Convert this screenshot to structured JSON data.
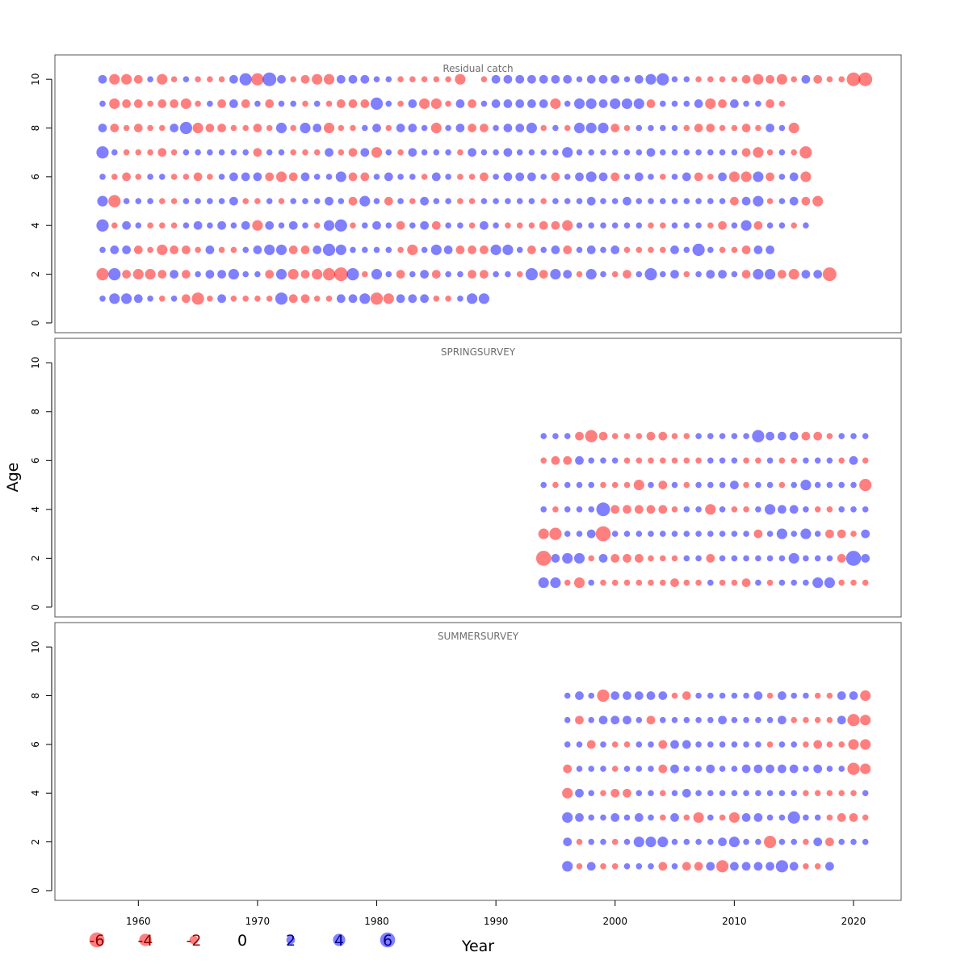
{
  "figure": {
    "xlabel": "Year",
    "ylabel": "Age"
  },
  "colors": {
    "negative": "#ff0000",
    "positive": "#0000ff",
    "bubble_opacity": 0.5,
    "frame": "#555555",
    "panel_title": "#6e6e6e"
  },
  "chart_data": {
    "type": "scatter",
    "description_of_encoding": "bubble residual plot",
    "xlim": [
      1953,
      2024
    ],
    "ylim": [
      -0.4,
      11
    ],
    "x_ticks": [
      1960,
      1970,
      1980,
      1990,
      2000,
      2010,
      2020
    ],
    "y_ticks": [
      0,
      2,
      4,
      6,
      8,
      10
    ],
    "legend": {
      "placement": "bottom-left",
      "entries": [
        {
          "label": "-6",
          "value": -6
        },
        {
          "label": "-4",
          "value": -4
        },
        {
          "label": "-2",
          "value": -2
        },
        {
          "label": "0",
          "value": 0
        },
        {
          "label": "2",
          "value": 2
        },
        {
          "label": "4",
          "value": 4
        },
        {
          "label": "6",
          "value": 6
        }
      ]
    },
    "panels": [
      {
        "title": "Residual catch",
        "years": [
          1957,
          2021
        ],
        "ages": [
          1,
          2,
          3,
          4,
          5,
          6,
          7,
          8,
          9,
          10
        ],
        "residuals": {
          "10": [
            2,
            -3,
            -3,
            -2,
            1,
            -3,
            -1,
            1,
            -1,
            -1,
            -1,
            2,
            4,
            -4,
            5,
            2,
            -1,
            -2,
            -3,
            -3,
            2,
            2,
            2,
            1,
            1,
            -1,
            -1,
            -1,
            -1,
            -1,
            -3,
            0,
            -1,
            2,
            2,
            2,
            2,
            2,
            2,
            2,
            1,
            2,
            2,
            2,
            1,
            2,
            3,
            4,
            1,
            1,
            -1,
            -1,
            -1,
            -1,
            -2,
            -3,
            -2,
            -3,
            -1,
            2,
            -2,
            -1,
            -1,
            -5,
            -5
          ],
          "9": [
            1,
            -3,
            -2,
            -2,
            -1,
            -2,
            -2,
            -3,
            -1,
            1,
            -2,
            2,
            -2,
            1,
            -2,
            1,
            1,
            -1,
            1,
            -1,
            -2,
            -2,
            -2,
            4,
            1,
            -1,
            2,
            -3,
            -3,
            -1,
            2,
            -2,
            1,
            2,
            2,
            2,
            2,
            2,
            -3,
            1,
            3,
            3,
            2,
            3,
            3,
            3,
            -2,
            1,
            1,
            1,
            2,
            -3,
            -2,
            2,
            1,
            1,
            -2,
            -1
          ],
          "8": [
            2,
            -2,
            -1,
            -2,
            -1,
            -1,
            2,
            4,
            -3,
            -2,
            -2,
            -1,
            -1,
            -2,
            -1,
            3,
            -1,
            3,
            2,
            -3,
            -1,
            -1,
            1,
            2,
            -1,
            2,
            2,
            1,
            -3,
            1,
            2,
            -2,
            -2,
            1,
            2,
            2,
            3,
            -1,
            1,
            -1,
            3,
            3,
            3,
            -2,
            -1,
            1,
            1,
            1,
            1,
            -1,
            -2,
            -2,
            -1,
            -1,
            -2,
            -1,
            2,
            1,
            -3
          ],
          "7": [
            4,
            1,
            -1,
            -1,
            -1,
            -2,
            -1,
            1,
            1,
            1,
            1,
            1,
            1,
            -2,
            1,
            1,
            -1,
            -1,
            -1,
            2,
            -1,
            -2,
            2,
            -3,
            1,
            -1,
            2,
            1,
            1,
            1,
            -1,
            2,
            1,
            1,
            2,
            1,
            1,
            1,
            1,
            3,
            1,
            1,
            1,
            1,
            1,
            1,
            2,
            1,
            1,
            1,
            1,
            1,
            1,
            1,
            -2,
            -3,
            -1,
            1,
            -1,
            -4
          ],
          "6": [
            1,
            -1,
            -2,
            -1,
            1,
            1,
            -1,
            -1,
            -2,
            -1,
            1,
            2,
            2,
            2,
            -2,
            -3,
            -2,
            2,
            1,
            1,
            3,
            -2,
            -2,
            1,
            2,
            1,
            1,
            -1,
            2,
            1,
            -1,
            -1,
            -2,
            1,
            2,
            2,
            2,
            1,
            -2,
            1,
            2,
            3,
            2,
            -2,
            1,
            2,
            1,
            -1,
            1,
            2,
            -2,
            -1,
            2,
            -3,
            -3,
            3,
            -2,
            1,
            2,
            -3
          ],
          "5": [
            3,
            -4,
            1,
            1,
            1,
            -1,
            -1,
            1,
            1,
            1,
            1,
            2,
            -1,
            -1,
            1,
            -1,
            1,
            1,
            1,
            2,
            1,
            -2,
            3,
            1,
            -2,
            1,
            -1,
            2,
            1,
            1,
            -1,
            -1,
            1,
            1,
            1,
            1,
            1,
            -1,
            1,
            1,
            1,
            2,
            1,
            1,
            2,
            1,
            1,
            1,
            1,
            1,
            1,
            1,
            1,
            -2,
            2,
            3,
            -1,
            1,
            2,
            -2,
            -3
          ],
          "4": [
            4,
            -1,
            2,
            1,
            -1,
            -1,
            -1,
            1,
            2,
            1,
            2,
            1,
            2,
            -3,
            2,
            1,
            2,
            1,
            -1,
            3,
            4,
            -1,
            1,
            2,
            1,
            -2,
            1,
            2,
            -2,
            1,
            1,
            -1,
            2,
            1,
            -1,
            -1,
            -1,
            -2,
            -2,
            -3,
            1,
            1,
            1,
            1,
            1,
            1,
            -1,
            -1,
            1,
            1,
            1,
            -1,
            -2,
            1,
            3,
            -2,
            1,
            1,
            -1,
            1
          ],
          "3": [
            1,
            2,
            2,
            -2,
            -1,
            -3,
            -2,
            -2,
            -1,
            2,
            -1,
            -1,
            1,
            2,
            3,
            3,
            -2,
            -2,
            2,
            4,
            3,
            1,
            1,
            1,
            1,
            -1,
            -3,
            1,
            3,
            2,
            -2,
            -2,
            -2,
            3,
            3,
            1,
            -2,
            1,
            2,
            -2,
            1,
            2,
            1,
            2,
            -1,
            -1,
            -1,
            -1,
            2,
            1,
            4,
            1,
            -1,
            -1,
            -2,
            2,
            2
          ],
          "2": [
            -4,
            4,
            -2,
            -3,
            -3,
            -2,
            2,
            -2,
            1,
            2,
            2,
            3,
            1,
            1,
            -2,
            3,
            -3,
            -2,
            -3,
            -4,
            -5,
            4,
            -1,
            3,
            1,
            -2,
            1,
            2,
            -2,
            1,
            1,
            -2,
            -2,
            1,
            1,
            -1,
            4,
            -2,
            3,
            2,
            -1,
            3,
            1,
            -1,
            -2,
            1,
            4,
            1,
            2,
            -1,
            1,
            2,
            2,
            1,
            -2,
            3,
            3,
            -2,
            -3,
            2,
            2,
            -5
          ],
          "1": [
            1,
            3,
            3,
            2,
            1,
            -1,
            1,
            -2,
            -4,
            -1,
            2,
            -1,
            -1,
            -1,
            -1,
            4,
            -2,
            -2,
            -1,
            -1,
            2,
            2,
            3,
            -4,
            -3,
            2,
            2,
            2,
            -1,
            -1,
            1,
            3,
            3
          ]
        }
      },
      {
        "title": "SPRINGSURVEY",
        "years": [
          1994,
          2021
        ],
        "ages": [
          1,
          2,
          3,
          4,
          5,
          6,
          7
        ],
        "residuals": {
          "7": [
            1,
            1,
            1,
            -2,
            -4,
            -2,
            -1,
            -1,
            -1,
            -2,
            -2,
            -1,
            -1,
            1,
            1,
            1,
            1,
            1,
            4,
            2,
            2,
            2,
            -2,
            -2,
            -1,
            1,
            1,
            1
          ],
          "6": [
            -1,
            -2,
            -2,
            2,
            1,
            1,
            1,
            -1,
            -1,
            -1,
            -1,
            -1,
            -1,
            -1,
            1,
            1,
            1,
            -1,
            -1,
            1,
            -1,
            -1,
            1,
            1,
            1,
            -1,
            2,
            -1
          ],
          "5": [
            1,
            -1,
            1,
            1,
            1,
            -1,
            -1,
            -1,
            -3,
            1,
            -2,
            1,
            -1,
            1,
            1,
            1,
            2,
            -1,
            1,
            1,
            -1,
            1,
            3,
            1,
            1,
            1,
            1,
            -4
          ],
          "4": [
            1,
            -1,
            1,
            1,
            1,
            5,
            -2,
            -2,
            -2,
            -2,
            -2,
            -1,
            1,
            1,
            -3,
            1,
            -1,
            -1,
            1,
            3,
            2,
            2,
            1,
            -1,
            -1,
            1,
            1,
            1
          ],
          "3": [
            -3,
            -4,
            1,
            1,
            2,
            -6,
            1,
            1,
            1,
            1,
            1,
            1,
            1,
            1,
            1,
            1,
            1,
            1,
            -2,
            1,
            3,
            1,
            3,
            1,
            -2,
            -2,
            -1,
            2
          ],
          "2": [
            -6,
            2,
            3,
            3,
            -1,
            2,
            -2,
            -2,
            -2,
            -1,
            -1,
            -1,
            1,
            1,
            -2,
            1,
            1,
            1,
            1,
            1,
            1,
            3,
            1,
            1,
            1,
            -2,
            6,
            2
          ],
          "1": [
            3,
            3,
            -1,
            -3,
            1,
            -1,
            -1,
            -1,
            -1,
            -1,
            -1,
            -2,
            -1,
            -1,
            1,
            -1,
            -1,
            -2,
            1,
            -1,
            1,
            1,
            1,
            3,
            3,
            -1,
            -1,
            -1
          ]
        }
      },
      {
        "title": "SUMMERSURVEY",
        "years": [
          1996,
          2021
        ],
        "ages": [
          1,
          2,
          3,
          4,
          5,
          6,
          7,
          8
        ],
        "residuals": {
          "8": [
            1,
            2,
            1,
            -4,
            2,
            2,
            2,
            2,
            2,
            -1,
            -2,
            1,
            1,
            1,
            1,
            1,
            2,
            -1,
            2,
            1,
            1,
            -1,
            -1,
            2,
            2,
            -3,
            -3
          ],
          "7": [
            1,
            -2,
            1,
            2,
            2,
            2,
            1,
            -2,
            1,
            1,
            1,
            1,
            1,
            2,
            1,
            1,
            1,
            1,
            2,
            -1,
            -1,
            -1,
            -1,
            2,
            -4,
            -3
          ],
          "6": [
            1,
            1,
            -2,
            1,
            -1,
            -1,
            1,
            1,
            -2,
            2,
            2,
            1,
            1,
            1,
            1,
            1,
            1,
            -1,
            1,
            1,
            -1,
            -2,
            -1,
            -1,
            -3,
            -3
          ],
          "5": [
            -2,
            1,
            1,
            1,
            -1,
            1,
            1,
            1,
            -2,
            2,
            1,
            1,
            2,
            1,
            1,
            2,
            2,
            2,
            2,
            2,
            1,
            2,
            1,
            1,
            -4,
            -3
          ],
          "4": [
            -3,
            2,
            1,
            -1,
            -2,
            -2,
            1,
            1,
            -1,
            1,
            2,
            1,
            1,
            1,
            1,
            1,
            1,
            1,
            1,
            1,
            -1,
            -1,
            -1,
            -1,
            -1,
            1
          ],
          "3": [
            3,
            2,
            1,
            1,
            2,
            1,
            2,
            1,
            -1,
            2,
            -1,
            -3,
            1,
            -1,
            -3,
            2,
            2,
            1,
            1,
            4,
            1,
            1,
            -1,
            -2,
            -2,
            -1
          ],
          "2": [
            2,
            -1,
            1,
            1,
            -1,
            1,
            3,
            3,
            3,
            1,
            1,
            1,
            1,
            2,
            3,
            1,
            1,
            -4,
            1,
            1,
            -1,
            2,
            -2,
            1,
            1,
            1
          ],
          "1": [
            3,
            -1,
            2,
            -1,
            -1,
            1,
            1,
            1,
            -2,
            1,
            -2,
            -2,
            2,
            -4,
            2,
            2,
            2,
            2,
            4,
            2,
            -1,
            -1,
            2
          ]
        }
      }
    ]
  }
}
